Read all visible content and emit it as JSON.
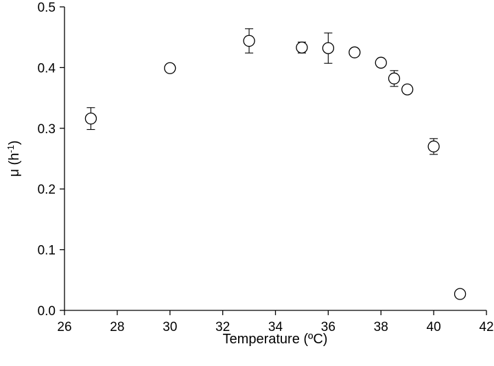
{
  "chart_data": {
    "type": "scatter",
    "xlabel": "Temperature (ºC)",
    "ylabel_main": "μ (h",
    "ylabel_sup": "-1",
    "ylabel_close": ")",
    "xlim": [
      26,
      42
    ],
    "ylim": [
      0,
      0.5
    ],
    "xticks": [
      "26",
      "28",
      "30",
      "32",
      "34",
      "36",
      "38",
      "40",
      "42"
    ],
    "yticks": [
      "0.0",
      "0.1",
      "0.2",
      "0.3",
      "0.4",
      "0.5"
    ],
    "grid": false,
    "marker": "open-circle",
    "points": [
      {
        "x": 27,
        "y": 0.316,
        "err": 0.018
      },
      {
        "x": 30,
        "y": 0.399,
        "err": 0
      },
      {
        "x": 33,
        "y": 0.444,
        "err": 0.02
      },
      {
        "x": 35,
        "y": 0.433,
        "err": 0.009
      },
      {
        "x": 36,
        "y": 0.432,
        "err": 0.025
      },
      {
        "x": 37,
        "y": 0.425,
        "err": 0
      },
      {
        "x": 38,
        "y": 0.408,
        "err": 0.006
      },
      {
        "x": 38.5,
        "y": 0.382,
        "err": 0.013
      },
      {
        "x": 39,
        "y": 0.364,
        "err": 0
      },
      {
        "x": 40,
        "y": 0.27,
        "err": 0.013
      },
      {
        "x": 41,
        "y": 0.027,
        "err": 0
      }
    ]
  }
}
